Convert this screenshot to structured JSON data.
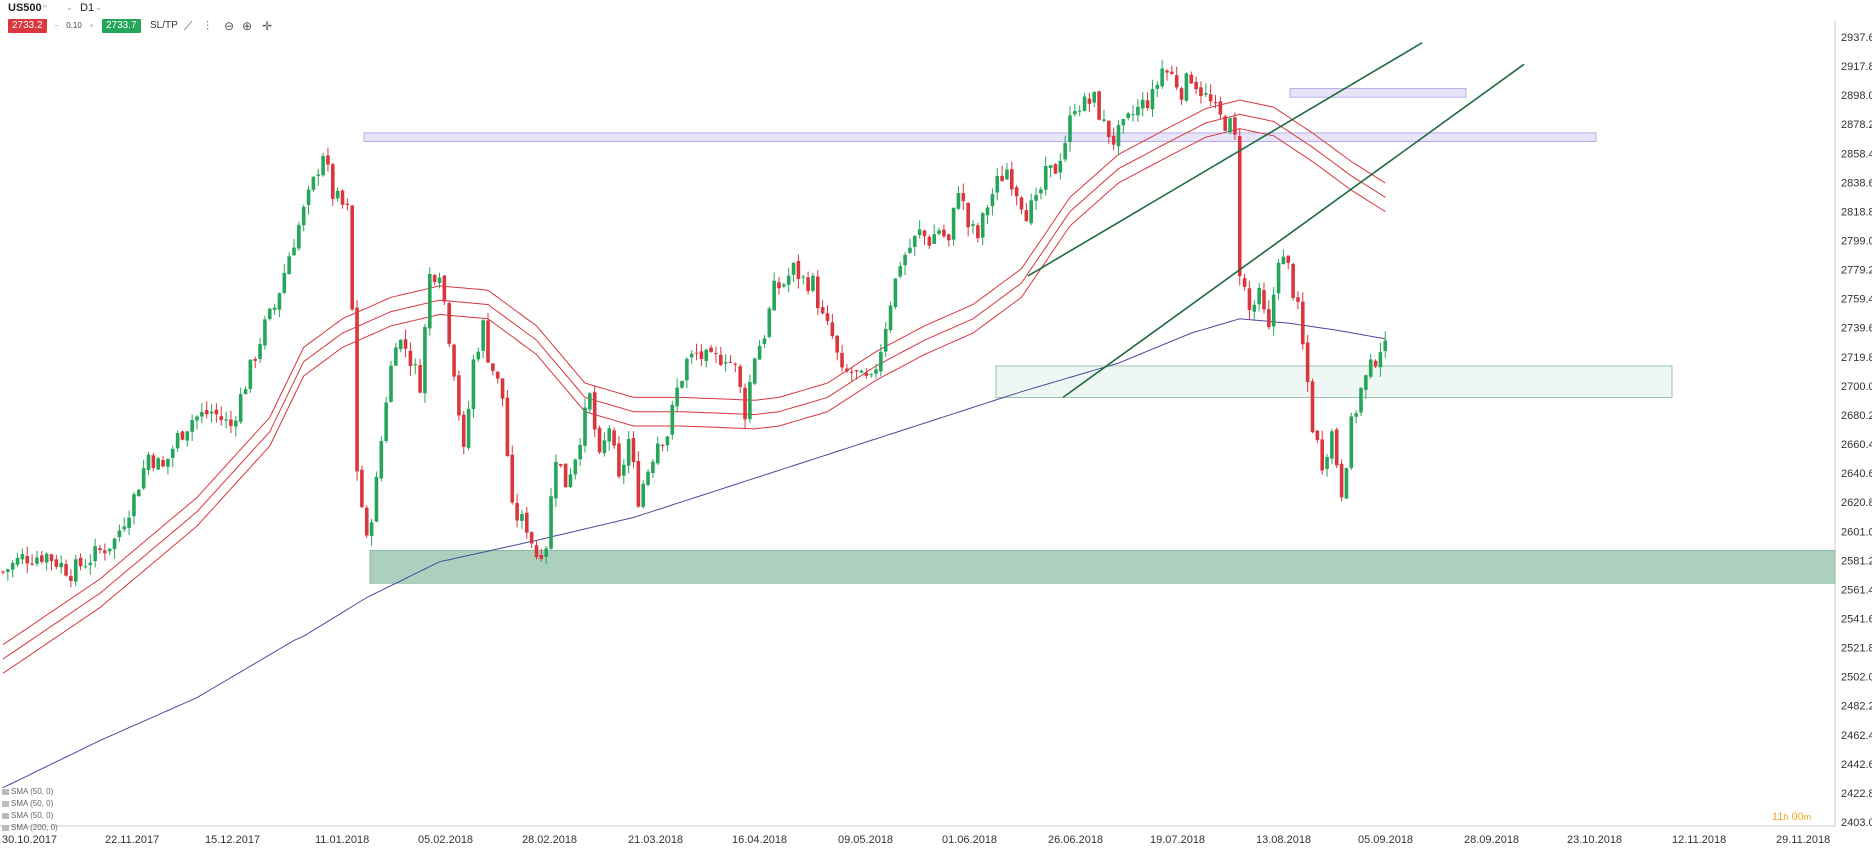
{
  "header": {
    "symbol": "US500",
    "symbol_sub": "∞",
    "timeframe": "D1",
    "sell_price": "2733.2",
    "lot": "0.10",
    "buy_price": "2733.7",
    "sltp_label": "SL/TP",
    "tools": [
      "line-chart-icon",
      "bar-chart-icon",
      "zoom-out-icon",
      "zoom-in-icon",
      "crosshair-icon"
    ]
  },
  "legend": [
    "SMA (50, 0)",
    "SMA (50, 0)",
    "SMA (50, 0)",
    "SMA (200, 0)"
  ],
  "timer": {
    "hours": "11",
    "h_label": "h",
    "minutes": "00",
    "m_label": "m"
  },
  "colors": {
    "bull": "#26a65b",
    "bear": "#d9363e",
    "envelope": "#d9363e",
    "sma200": "#4a4a9a",
    "zone_green": "#7fb59b",
    "zone_purple": "#b9b0f0",
    "trendline": "#1d6b3f"
  },
  "chart_data": {
    "type": "candlestick",
    "x_ticks": [
      "30.10.2017",
      "22.11.2017",
      "15.12.2017",
      "11.01.2018",
      "05.02.2018",
      "28.02.2018",
      "21.03.2018",
      "16.04.2018",
      "09.05.2018",
      "01.06.2018",
      "26.06.2018",
      "19.07.2018",
      "13.08.2018",
      "05.09.2018",
      "28.09.2018",
      "23.10.2018",
      "12.11.2018",
      "29.11.2018"
    ],
    "y_ticks": [
      "2937.6",
      "2917.8",
      "2898.0",
      "2878.2",
      "2858.4",
      "2838.6",
      "2818.8",
      "2799.0",
      "2779.2",
      "2759.4",
      "2739.6",
      "2719.8",
      "2700.0",
      "2680.2",
      "2660.4",
      "2640.6",
      "2620.8",
      "2601.0",
      "2581.2",
      "2561.4",
      "2541.6",
      "2521.8",
      "2502.0",
      "2482.2",
      "2462.4",
      "2442.6",
      "2422.8",
      "2403.0"
    ],
    "ylim": [
      2403.0,
      2950.0
    ],
    "anchors": [
      [
        0,
        2578
      ],
      [
        4,
        2588
      ],
      [
        9,
        2590
      ],
      [
        14,
        2578
      ],
      [
        19,
        2590
      ],
      [
        23,
        2600
      ],
      [
        27,
        2630
      ],
      [
        30,
        2660
      ],
      [
        33,
        2650
      ],
      [
        36,
        2672
      ],
      [
        39,
        2685
      ],
      [
        43,
        2690
      ],
      [
        47,
        2680
      ],
      [
        51,
        2720
      ],
      [
        54,
        2750
      ],
      [
        56,
        2763
      ],
      [
        59,
        2800
      ],
      [
        62,
        2830
      ],
      [
        64,
        2850
      ],
      [
        66,
        2872
      ],
      [
        68,
        2842
      ],
      [
        71,
        2830
      ],
      [
        72,
        2760
      ],
      [
        73,
        2650
      ],
      [
        75,
        2598
      ],
      [
        77,
        2640
      ],
      [
        79,
        2700
      ],
      [
        81,
        2742
      ],
      [
        83,
        2735
      ],
      [
        86,
        2710
      ],
      [
        88,
        2785
      ],
      [
        90,
        2790
      ],
      [
        93,
        2720
      ],
      [
        95,
        2660
      ],
      [
        97,
        2725
      ],
      [
        99,
        2750
      ],
      [
        100,
        2730
      ],
      [
        103,
        2700
      ],
      [
        105,
        2620
      ],
      [
        108,
        2610
      ],
      [
        110,
        2590
      ],
      [
        112,
        2598
      ],
      [
        114,
        2660
      ],
      [
        116,
        2640
      ],
      [
        118,
        2660
      ],
      [
        121,
        2700
      ],
      [
        123,
        2655
      ],
      [
        125,
        2680
      ],
      [
        127,
        2640
      ],
      [
        129,
        2670
      ],
      [
        131,
        2630
      ],
      [
        133,
        2650
      ],
      [
        135,
        2670
      ],
      [
        137,
        2675
      ],
      [
        139,
        2705
      ],
      [
        141,
        2725
      ],
      [
        143,
        2730
      ],
      [
        146,
        2725
      ],
      [
        149,
        2730
      ],
      [
        151,
        2720
      ],
      [
        153,
        2690
      ],
      [
        155,
        2730
      ],
      [
        157,
        2745
      ],
      [
        159,
        2775
      ],
      [
        161,
        2780
      ],
      [
        163,
        2790
      ],
      [
        165,
        2782
      ],
      [
        167,
        2780
      ],
      [
        169,
        2755
      ],
      [
        171,
        2742
      ],
      [
        173,
        2715
      ],
      [
        175,
        2718
      ],
      [
        177,
        2712
      ],
      [
        179,
        2710
      ],
      [
        181,
        2735
      ],
      [
        183,
        2768
      ],
      [
        185,
        2795
      ],
      [
        187,
        2805
      ],
      [
        189,
        2815
      ],
      [
        191,
        2810
      ],
      [
        193,
        2818
      ],
      [
        195,
        2808
      ],
      [
        197,
        2848
      ],
      [
        199,
        2820
      ],
      [
        201,
        2812
      ],
      [
        203,
        2835
      ],
      [
        205,
        2850
      ],
      [
        207,
        2860
      ],
      [
        209,
        2845
      ],
      [
        211,
        2830
      ],
      [
        213,
        2835
      ],
      [
        215,
        2855
      ],
      [
        217,
        2860
      ],
      [
        219,
        2880
      ],
      [
        221,
        2906
      ],
      [
        223,
        2905
      ],
      [
        225,
        2908
      ],
      [
        227,
        2890
      ],
      [
        229,
        2880
      ],
      [
        231,
        2888
      ],
      [
        233,
        2898
      ],
      [
        235,
        2905
      ],
      [
        237,
        2910
      ],
      [
        239,
        2930
      ],
      [
        241,
        2925
      ],
      [
        243,
        2915
      ],
      [
        245,
        2925
      ],
      [
        247,
        2915
      ],
      [
        249,
        2905
      ],
      [
        251,
        2895
      ],
      [
        253,
        2890
      ],
      [
        254,
        2880
      ],
      [
        255,
        2790
      ],
      [
        257,
        2760
      ],
      [
        259,
        2770
      ],
      [
        261,
        2745
      ],
      [
        263,
        2800
      ],
      [
        265,
        2790
      ],
      [
        267,
        2760
      ],
      [
        269,
        2710
      ],
      [
        270,
        2680
      ],
      [
        272,
        2655
      ],
      [
        274,
        2675
      ],
      [
        276,
        2635
      ],
      [
        278,
        2680
      ],
      [
        280,
        2705
      ],
      [
        282,
        2720
      ],
      [
        284,
        2736
      ],
      [
        285,
        2733
      ]
    ],
    "sma200_anchors": [
      [
        0,
        2427
      ],
      [
        20,
        2460
      ],
      [
        40,
        2490
      ],
      [
        60,
        2530
      ],
      [
        62,
        2533
      ],
      [
        75,
        2560
      ],
      [
        90,
        2585
      ],
      [
        110,
        2600
      ],
      [
        130,
        2616
      ],
      [
        150,
        2638
      ],
      [
        170,
        2660
      ],
      [
        190,
        2682
      ],
      [
        210,
        2704
      ],
      [
        230,
        2724
      ],
      [
        245,
        2745
      ],
      [
        255,
        2755
      ],
      [
        265,
        2752
      ],
      [
        275,
        2747
      ],
      [
        285,
        2741
      ]
    ],
    "envelope_mid_anchors": [
      [
        0,
        2517
      ],
      [
        20,
        2563
      ],
      [
        40,
        2620
      ],
      [
        55,
        2676
      ],
      [
        62,
        2725
      ],
      [
        70,
        2745
      ],
      [
        80,
        2760
      ],
      [
        90,
        2768
      ],
      [
        100,
        2765
      ],
      [
        110,
        2740
      ],
      [
        120,
        2700
      ],
      [
        130,
        2690
      ],
      [
        140,
        2690
      ],
      [
        155,
        2688
      ],
      [
        160,
        2690
      ],
      [
        170,
        2700
      ],
      [
        180,
        2722
      ],
      [
        190,
        2740
      ],
      [
        200,
        2755
      ],
      [
        210,
        2780
      ],
      [
        220,
        2830
      ],
      [
        230,
        2860
      ],
      [
        240,
        2878
      ],
      [
        248,
        2892
      ],
      [
        255,
        2898
      ],
      [
        262,
        2893
      ],
      [
        270,
        2875
      ],
      [
        278,
        2855
      ],
      [
        285,
        2840
      ]
    ],
    "envelope_offset": 10,
    "zones": [
      {
        "name": "support-zone-green",
        "y_low": 2570,
        "y_high": 2593
      },
      {
        "name": "zone-light-green",
        "y_low": 2700,
        "y_high": 2722
      },
      {
        "name": "resistance-zone-purple",
        "y_low": 2879,
        "y_high": 2885
      },
      {
        "name": "zone-purple-small",
        "y_low": 2910,
        "y_high": 2916
      }
    ],
    "trendlines": [
      {
        "name": "upper-channel-line",
        "from": [
          2798,
          2785
        ],
        "to": [
          3000,
          2948
        ]
      },
      {
        "name": "lower-channel-line",
        "from": [
          2800,
          2700
        ],
        "to": [
          3000,
          2933
        ]
      }
    ],
    "grid": false
  }
}
